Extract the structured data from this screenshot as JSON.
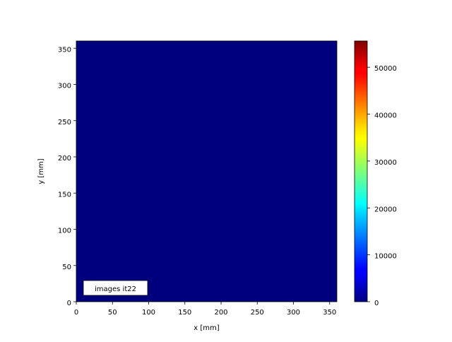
{
  "chart_data": {
    "type": "heatmap",
    "title": "",
    "xlabel": "x [mm]",
    "ylabel": "y [mm]",
    "xlim": [
      0,
      360
    ],
    "ylim": [
      0,
      360
    ],
    "xticks": [
      0,
      50,
      100,
      150,
      200,
      250,
      300,
      350
    ],
    "yticks": [
      0,
      50,
      100,
      150,
      200,
      250,
      300,
      350
    ],
    "values_description_uniform_value": 0,
    "colormap": "jet",
    "fill_color": "#00007f",
    "colorbar": {
      "range": [
        0,
        55600
      ],
      "ticks": [
        0,
        10000,
        20000,
        30000,
        40000,
        50000
      ]
    },
    "annotation": "images it22",
    "annotation_position": "bottom-left",
    "grid": false
  }
}
